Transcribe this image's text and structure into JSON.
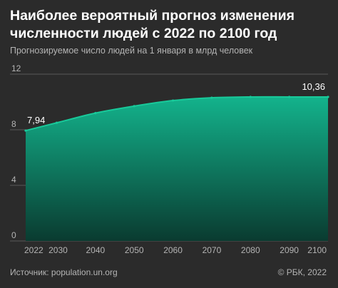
{
  "header": {
    "title": "Наиболее вероятный прогноз изменения численности людей с 2022 по 2100 год",
    "subtitle": "Прогнозируемое число людей на 1 января в млрд человек"
  },
  "footer": {
    "source": "Источник: population.un.org",
    "copyright": "© РБК, 2022"
  },
  "colors": {
    "background": "#2b2b2b",
    "area_top": "#13b38c",
    "area_bottom": "#0a3b30",
    "line": "#19c99a",
    "grid": "#5a5a5a"
  },
  "chart_data": {
    "type": "area",
    "x": [
      2022,
      2030,
      2040,
      2050,
      2060,
      2070,
      2080,
      2090,
      2100
    ],
    "values": [
      7.94,
      8.5,
      9.2,
      9.7,
      10.1,
      10.3,
      10.36,
      10.36,
      10.36
    ],
    "ylim": [
      0,
      12
    ],
    "yticks": [
      0,
      4,
      8,
      12
    ],
    "xlim": [
      2022,
      2100
    ],
    "xticks": [
      2022,
      2030,
      2040,
      2050,
      2060,
      2070,
      2080,
      2090,
      2100
    ],
    "labels": [
      {
        "x": 2022,
        "text": "7,94"
      },
      {
        "x": 2100,
        "text": "10,36"
      }
    ],
    "grid": true
  }
}
